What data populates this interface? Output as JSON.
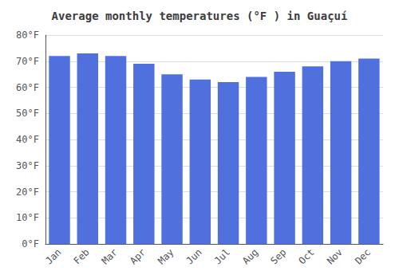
{
  "chart_data": {
    "type": "bar",
    "title": "Average monthly temperatures (°F ) in Guaçuí",
    "categories": [
      "Jan",
      "Feb",
      "Mar",
      "Apr",
      "May",
      "Jun",
      "Jul",
      "Aug",
      "Sep",
      "Oct",
      "Nov",
      "Dec"
    ],
    "values": [
      72,
      73,
      72,
      69,
      65,
      63,
      62,
      64,
      66,
      68,
      70,
      71
    ],
    "ylim": [
      0,
      80
    ],
    "yticks": [
      {
        "value": 0,
        "label": "0°F"
      },
      {
        "value": 10,
        "label": "10°F"
      },
      {
        "value": 20,
        "label": "20°F"
      },
      {
        "value": 30,
        "label": "30°F"
      },
      {
        "value": 40,
        "label": "40°F"
      },
      {
        "value": 50,
        "label": "50°F"
      },
      {
        "value": 60,
        "label": "60°F"
      },
      {
        "value": 70,
        "label": "70°F"
      },
      {
        "value": 80,
        "label": "80°F"
      }
    ],
    "grid": true
  }
}
